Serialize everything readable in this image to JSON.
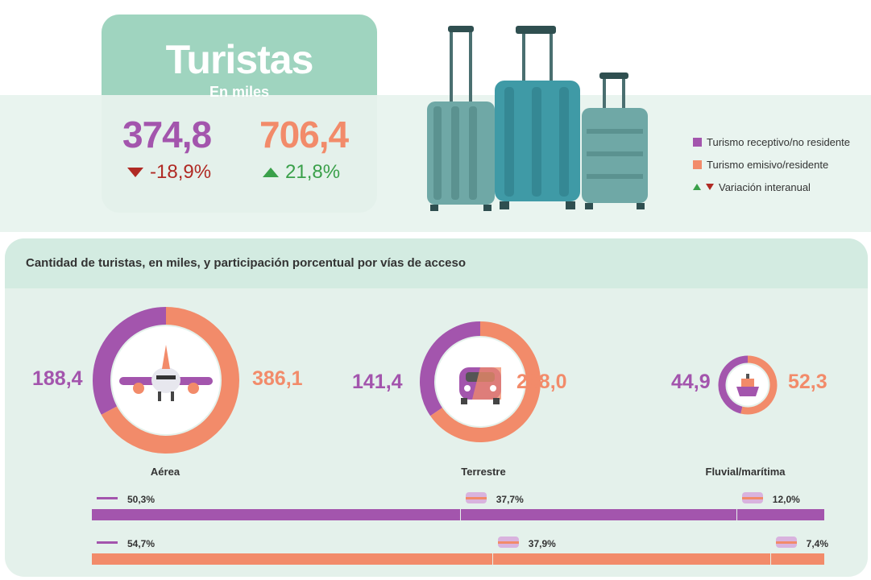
{
  "header": {
    "title": "Turistas",
    "subtitle": "En miles",
    "receptivo_value": "374,8",
    "receptivo_var": "-18,9%",
    "emisivo_value": "706,4",
    "emisivo_var": "21,8%"
  },
  "legend": {
    "receptivo": "Turismo receptivo/no residente",
    "emisivo": "Turismo emisivo/residente",
    "variacion": "Variación interanual"
  },
  "colors": {
    "receptivo": "#a355ad",
    "emisivo": "#f28b6a",
    "teal_light": "#9fd4bf",
    "down": "#b02a24",
    "up": "#3aa04a"
  },
  "section_title": "Cantidad de turistas, en miles, y participación porcentual por vías de acceso",
  "icons": [
    "suitcase-icon",
    "airplane-icon",
    "car-icon",
    "ship-icon"
  ],
  "chart_data": {
    "type": "pie",
    "title": "Cantidad de turistas, en miles, y participación porcentual por vías de acceso",
    "categories": [
      "Aérea",
      "Terrestre",
      "Fluvial/marítima"
    ],
    "series": [
      {
        "name": "Turismo receptivo/no residente",
        "values": [
          188.4,
          141.4,
          44.9
        ],
        "labels": [
          "188,4",
          "141,4",
          "44,9"
        ],
        "shares": [
          50.3,
          37.7,
          12.0
        ],
        "share_labels": [
          "50,3%",
          "37,7%",
          "12,0%"
        ]
      },
      {
        "name": "Turismo emisivo/residente",
        "values": [
          386.1,
          268.0,
          52.3
        ],
        "labels": [
          "386,1",
          "268,0",
          "52,3"
        ],
        "shares": [
          54.7,
          37.9,
          7.4
        ],
        "share_labels": [
          "54,7%",
          "37,9%",
          "7,4%"
        ]
      }
    ]
  }
}
